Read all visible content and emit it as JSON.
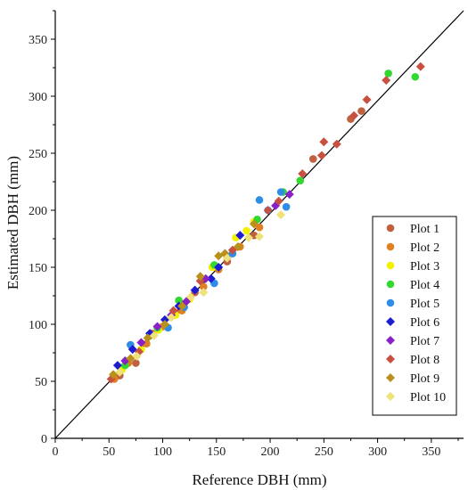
{
  "chart_data": {
    "type": "scatter",
    "title": "",
    "xlabel": "Reference DBH (mm)",
    "ylabel": "Estimated DBH (mm)",
    "xlim": [
      0,
      380
    ],
    "ylim": [
      0,
      375
    ],
    "xticks": [
      0,
      50,
      100,
      150,
      200,
      250,
      300,
      350
    ],
    "yticks": [
      0,
      50,
      100,
      150,
      200,
      250,
      300,
      350
    ],
    "grid": false,
    "legend_position": "right-middle",
    "reference_line": {
      "from": [
        0,
        0
      ],
      "to": [
        380,
        375
      ],
      "color": "#000000"
    },
    "series": [
      {
        "name": "Plot 1",
        "color": "#c0603f",
        "marker": "circle",
        "points": [
          [
            60,
            55
          ],
          [
            75,
            66
          ],
          [
            90,
            92
          ],
          [
            112,
            110
          ],
          [
            130,
            128
          ],
          [
            160,
            155
          ],
          [
            185,
            178
          ],
          [
            240,
            245
          ],
          [
            275,
            280
          ],
          [
            285,
            287
          ]
        ]
      },
      {
        "name": "Plot 2",
        "color": "#e08020",
        "marker": "circle",
        "points": [
          [
            55,
            52
          ],
          [
            68,
            66
          ],
          [
            85,
            83
          ],
          [
            100,
            98
          ],
          [
            118,
            112
          ],
          [
            138,
            133
          ],
          [
            152,
            148
          ],
          [
            172,
            168
          ],
          [
            190,
            185
          ]
        ]
      },
      {
        "name": "Plot 3",
        "color": "#f2f200",
        "marker": "circle",
        "points": [
          [
            62,
            60
          ],
          [
            80,
            78
          ],
          [
            96,
            95
          ],
          [
            112,
            108
          ],
          [
            125,
            122
          ],
          [
            146,
            150
          ],
          [
            168,
            176
          ],
          [
            178,
            182
          ],
          [
            185,
            190
          ]
        ]
      },
      {
        "name": "Plot 4",
        "color": "#30d830",
        "marker": "circle",
        "points": [
          [
            65,
            64
          ],
          [
            95,
            97
          ],
          [
            115,
            121
          ],
          [
            148,
            152
          ],
          [
            188,
            192
          ],
          [
            212,
            216
          ],
          [
            228,
            226
          ],
          [
            310,
            320
          ],
          [
            335,
            317
          ]
        ]
      },
      {
        "name": "Plot 5",
        "color": "#2e8ee6",
        "marker": "circle",
        "points": [
          [
            70,
            82
          ],
          [
            88,
            90
          ],
          [
            105,
            97
          ],
          [
            120,
            115
          ],
          [
            148,
            136
          ],
          [
            165,
            162
          ],
          [
            190,
            209
          ],
          [
            198,
            200
          ],
          [
            210,
            216
          ],
          [
            215,
            203
          ]
        ]
      },
      {
        "name": "Plot 6",
        "color": "#1c1cd0",
        "marker": "diamond",
        "points": [
          [
            58,
            64
          ],
          [
            72,
            78
          ],
          [
            88,
            92
          ],
          [
            102,
            104
          ],
          [
            115,
            116
          ],
          [
            130,
            130
          ],
          [
            145,
            140
          ],
          [
            152,
            150
          ],
          [
            158,
            162
          ],
          [
            172,
            178
          ]
        ]
      },
      {
        "name": "Plot 7",
        "color": "#8a20c8",
        "marker": "diamond",
        "points": [
          [
            65,
            68
          ],
          [
            80,
            84
          ],
          [
            95,
            98
          ],
          [
            108,
            108
          ],
          [
            122,
            120
          ],
          [
            140,
            140
          ],
          [
            160,
            158
          ],
          [
            205,
            204
          ],
          [
            218,
            214
          ]
        ]
      },
      {
        "name": "Plot 8",
        "color": "#c85040",
        "marker": "diamond",
        "points": [
          [
            52,
            52
          ],
          [
            78,
            76
          ],
          [
            110,
            112
          ],
          [
            135,
            138
          ],
          [
            165,
            165
          ],
          [
            198,
            200
          ],
          [
            208,
            208
          ],
          [
            230,
            232
          ],
          [
            248,
            248
          ],
          [
            250,
            260
          ],
          [
            262,
            258
          ],
          [
            278,
            283
          ],
          [
            290,
            297
          ],
          [
            308,
            314
          ],
          [
            340,
            326
          ]
        ]
      },
      {
        "name": "Plot 9",
        "color": "#b8901a",
        "marker": "diamond",
        "points": [
          [
            54,
            56
          ],
          [
            70,
            70
          ],
          [
            86,
            88
          ],
          [
            102,
            100
          ],
          [
            118,
            116
          ],
          [
            135,
            142
          ],
          [
            152,
            160
          ],
          [
            158,
            162
          ],
          [
            170,
            168
          ],
          [
            185,
            188
          ]
        ]
      },
      {
        "name": "Plot 10",
        "color": "#f0e27a",
        "marker": "diamond",
        "points": [
          [
            60,
            58
          ],
          [
            76,
            72
          ],
          [
            92,
            90
          ],
          [
            108,
            106
          ],
          [
            126,
            124
          ],
          [
            138,
            128
          ],
          [
            160,
            158
          ],
          [
            180,
            176
          ],
          [
            190,
            177
          ],
          [
            210,
            196
          ]
        ]
      }
    ]
  }
}
